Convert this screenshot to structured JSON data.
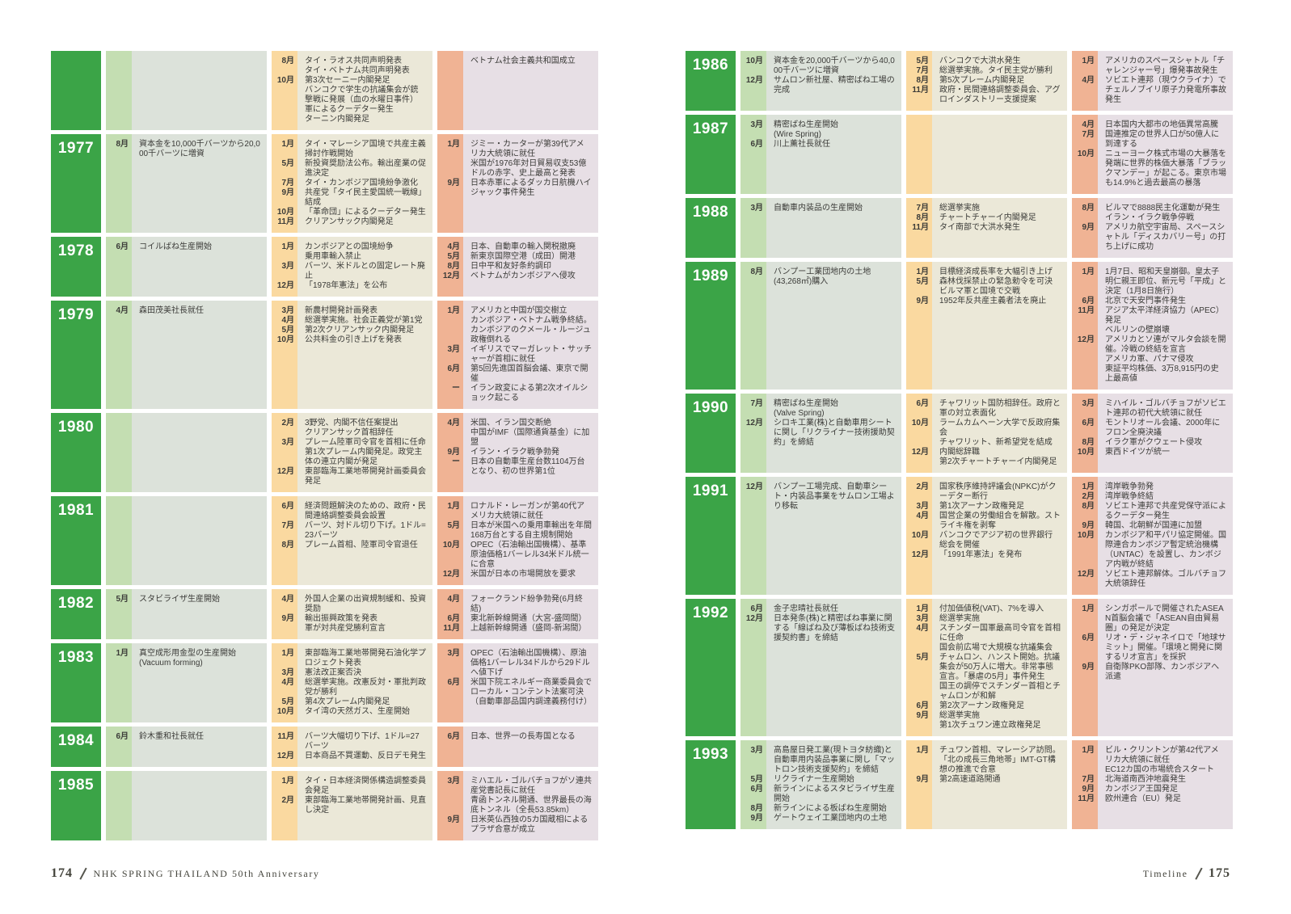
{
  "colors": {
    "year_box": "#3ba447",
    "year_text": "#ffffff",
    "company_band": "#c4deb2",
    "company_area": "#dce2da",
    "thai_band": "#fad9a0",
    "thai_area": "#ebe8d8",
    "world_band": "#f0b394",
    "world_area": "#e7dfe5",
    "text": "#3b3b38"
  },
  "pages": [
    {
      "side": "left",
      "footer": {
        "page_number": "174",
        "label": "NHK SPRING THAILAND 50th Anniversary"
      },
      "rows": [
        {
          "year": "",
          "company": [],
          "thailand": [
            {
              "m": "8月",
              "t": "タイ・ラオス共同声明発表"
            },
            {
              "m": "",
              "t": "タイ・ベトナム共同声明発表"
            },
            {
              "m": "10月",
              "t": "第3次セーニー内閣発足"
            },
            {
              "m": "",
              "t": "バンコクで学生の抗議集会が銃撃戦に発展（血の水曜日事件）"
            },
            {
              "m": "",
              "t": "軍によるクーデター発生"
            },
            {
              "m": "",
              "t": "ターニン内閣発足"
            }
          ],
          "world": [
            {
              "m": "",
              "t": "ベトナム社会主義共和国成立"
            }
          ]
        },
        {
          "year": "1977",
          "company": [
            {
              "m": "8月",
              "t": "資本金を10,000千バーツから20,000千バーツに増資"
            }
          ],
          "thailand": [
            {
              "m": "1月",
              "t": "タイ・マレーシア国境で共産主義掃討作戦開始"
            },
            {
              "m": "5月",
              "t": "新投資奨励法公布。輸出産業の促進決定"
            },
            {
              "m": "7月",
              "t": "タイ・カンボジア国境紛争激化"
            },
            {
              "m": "9月",
              "t": "共産党「タイ民主愛国統一戦線」結成"
            },
            {
              "m": "10月",
              "t": "「革命団」によるクーデター発生"
            },
            {
              "m": "11月",
              "t": "クリアンサック内閣発足"
            }
          ],
          "world": [
            {
              "m": "1月",
              "t": "ジミー・カーターが第39代アメリカ大統領に就任"
            },
            {
              "m": "",
              "t": "米国が1976年対日貿易収支53億ドルの赤字、史上最高と発表"
            },
            {
              "m": "9月",
              "t": "日本赤軍によるダッカ日航機ハイジャック事件発生"
            }
          ]
        },
        {
          "year": "1978",
          "company": [
            {
              "m": "6月",
              "t": "コイルばね生産開始"
            }
          ],
          "thailand": [
            {
              "m": "1月",
              "t": "カンボジアとの国境紛争"
            },
            {
              "m": "",
              "t": "乗用車輸入禁止"
            },
            {
              "m": "3月",
              "t": "バーツ、米ドルとの固定レート廃止"
            },
            {
              "m": "12月",
              "t": "「1978年憲法」を公布"
            }
          ],
          "world": [
            {
              "m": "4月",
              "t": "日本、自動車の輸入関税撤廃"
            },
            {
              "m": "5月",
              "t": "新東京国際空港（成田）開港"
            },
            {
              "m": "8月",
              "t": "日中平和友好条約調印"
            },
            {
              "m": "12月",
              "t": "ベトナムがカンボジアへ侵攻"
            }
          ]
        },
        {
          "year": "1979",
          "company": [
            {
              "m": "4月",
              "t": "森田茂美社長就任"
            }
          ],
          "thailand": [
            {
              "m": "3月",
              "t": "新農村開発計画発表"
            },
            {
              "m": "4月",
              "t": "総選挙実施。社会正義党が第1党"
            },
            {
              "m": "5月",
              "t": "第2次クリアンサック内閣発足"
            },
            {
              "m": "10月",
              "t": "公共料金の引き上げを発表"
            }
          ],
          "world": [
            {
              "m": "1月",
              "t": "アメリカと中国が国交樹立"
            },
            {
              "m": "",
              "t": "カンボジア・ベトナム戦争終結。カンボジアのクメール・ルージュ政権倒れる"
            },
            {
              "m": "3月",
              "t": "イギリスでマーガレット・サッチャーが首相に就任"
            },
            {
              "m": "6月",
              "t": "第5回先進国首脳会議、東京で開催"
            },
            {
              "m": "ー",
              "t": "イラン政変による第2次オイルショック起こる"
            }
          ]
        },
        {
          "year": "1980",
          "company": [],
          "thailand": [
            {
              "m": "2月",
              "t": "3野党、内閣不信任案提出"
            },
            {
              "m": "",
              "t": "クリアンサック首相辞任"
            },
            {
              "m": "3月",
              "t": "プレーム陸軍司令官を首相に任命"
            },
            {
              "m": "",
              "t": "第1次プレーム内閣発足。政党主体の連立内閣が発足"
            },
            {
              "m": "12月",
              "t": "東部臨海工業地帯開発計画委員会発足"
            }
          ],
          "world": [
            {
              "m": "4月",
              "t": "米国、イラン国交断絶"
            },
            {
              "m": "",
              "t": "中国がIMF（国際通貨基金）に加盟"
            },
            {
              "m": "9月",
              "t": "イラン・イラク戦争勃発"
            },
            {
              "m": "ー",
              "t": "日本の自動車生産台数1104万台となり、初の世界第1位"
            }
          ]
        },
        {
          "year": "1981",
          "company": [],
          "thailand": [
            {
              "m": "6月",
              "t": "経済問題解決のための、政府・民間連絡調整委員会設置"
            },
            {
              "m": "7月",
              "t": "バーツ、対ドル切り下げ。1ドル=23バーツ"
            },
            {
              "m": "8月",
              "t": "プレーム首相、陸軍司令官退任"
            }
          ],
          "world": [
            {
              "m": "1月",
              "t": "ロナルド・レーガンが第40代アメリカ大統領に就任"
            },
            {
              "m": "5月",
              "t": "日本が米国への乗用車輸出を年間168万台とする自主規制開始"
            },
            {
              "m": "10月",
              "t": "OPEC（石油輸出国機構）、基準原油価格1バーレル34米ドル統一に合意"
            },
            {
              "m": "12月",
              "t": "米国が日本の市場開放を要求"
            }
          ]
        },
        {
          "year": "1982",
          "company": [
            {
              "m": "5月",
              "t": "スタビライザ生産開始"
            }
          ],
          "thailand": [
            {
              "m": "4月",
              "t": "外国人企業の出資規制緩和、投資奨励"
            },
            {
              "m": "9月",
              "t": "輸出振興政策を発表"
            },
            {
              "m": "",
              "t": "軍が対共産党勝利宣言"
            }
          ],
          "world": [
            {
              "m": "4月",
              "t": "フォークランド紛争勃発(6月終結)"
            },
            {
              "m": "6月",
              "t": "東北新幹線開通（大宮-盛岡間）"
            },
            {
              "m": "11月",
              "t": "上越新幹線開通（盛岡-新潟間）"
            }
          ]
        },
        {
          "year": "1983",
          "company": [
            {
              "m": "1月",
              "t": "真空成形用金型の生産開始"
            },
            {
              "m": "",
              "t": "(Vacuum forming)"
            }
          ],
          "thailand": [
            {
              "m": "1月",
              "t": "東部臨海工業地帯開発石油化学プロジェクト発表"
            },
            {
              "m": "3月",
              "t": "憲法改正案否決"
            },
            {
              "m": "4月",
              "t": "総選挙実施。改憲反対・軍批判政党が勝利"
            },
            {
              "m": "5月",
              "t": "第4次プレーム内閣発足"
            },
            {
              "m": "10月",
              "t": "タイ湾の天然ガス、生産開始"
            }
          ],
          "world": [
            {
              "m": "3月",
              "t": "OPEC（石油輸出国機構）、原油価格1バーレル34ドルから29ドルへ値下げ"
            },
            {
              "m": "6月",
              "t": "米国下院エネルギー商業委員会でローカル・コンテント法案可決（自動車部品国内調達義務付け）"
            }
          ]
        },
        {
          "year": "1984",
          "company": [
            {
              "m": "6月",
              "t": "鈴木重和社長就任"
            }
          ],
          "thailand": [
            {
              "m": "11月",
              "t": "バーツ大幅切り下げ、1ドル=27バーツ"
            },
            {
              "m": "12月",
              "t": "日本商品不買運動、反日デモ発生"
            }
          ],
          "world": [
            {
              "m": "6月",
              "t": "日本、世界一の長寿国となる"
            }
          ]
        },
        {
          "year": "1985",
          "company": [],
          "thailand": [
            {
              "m": "1月",
              "t": "タイ・日本経済関係構造調整委員会発足"
            },
            {
              "m": "2月",
              "t": "東部臨海工業地帯開発計画、見直し決定"
            }
          ],
          "world": [
            {
              "m": "3月",
              "t": "ミハエル・ゴルバチョフがソ連共産党書記長に就任"
            },
            {
              "m": "",
              "t": "青函トンネル開通、世界最長の海底トンネル（全長53.85km）"
            },
            {
              "m": "9月",
              "t": "日米英仏西独の5カ国蔵相によるプラザ合意が成立"
            }
          ]
        }
      ]
    },
    {
      "side": "right",
      "footer": {
        "page_number": "175",
        "label": "Timeline"
      },
      "rows": [
        {
          "year": "1986",
          "company": [
            {
              "m": "10月",
              "t": "資本金を20,000千バーツから40,000千バーツに増資"
            },
            {
              "m": "12月",
              "t": "サムロン新社屋、精密ばね工場の完成"
            }
          ],
          "thailand": [
            {
              "m": "5月",
              "t": "バンコクで大洪水発生"
            },
            {
              "m": "7月",
              "t": "総選挙実施。タイ民主党が勝利"
            },
            {
              "m": "8月",
              "t": "第5次プレーム内閣発足"
            },
            {
              "m": "11月",
              "t": "政府・民間連絡調整委員会、アグロインダストリー支援提案"
            }
          ],
          "world": [
            {
              "m": "1月",
              "t": "アメリカのスペースシャトル「チャレンジャー号」爆発事故発生"
            },
            {
              "m": "4月",
              "t": "ソビエト連邦（現ウクライナ）でチェルノブイリ原子力発電所事故発生"
            }
          ]
        },
        {
          "year": "1987",
          "company": [
            {
              "m": "3月",
              "t": "精密ばね生産開始"
            },
            {
              "m": "",
              "t": "(Wire Spring)"
            },
            {
              "m": "6月",
              "t": "川上薫社長就任"
            }
          ],
          "thailand": [],
          "world": [
            {
              "m": "4月",
              "t": "日本国内大都市の地価異常高騰"
            },
            {
              "m": "7月",
              "t": "国連推定の世界人口が50億人に到達する"
            },
            {
              "m": "10月",
              "t": "ニューヨーク株式市場の大暴落を発端に世界的株価大暴落「ブラックマンデー」が起こる。東京市場も14.9%と過去最高の暴落"
            }
          ]
        },
        {
          "year": "1988",
          "company": [
            {
              "m": "3月",
              "t": "自動車内装品の生産開始"
            }
          ],
          "thailand": [
            {
              "m": "7月",
              "t": "総選挙実施"
            },
            {
              "m": "8月",
              "t": "チャートチャーイ内閣発足"
            },
            {
              "m": "11月",
              "t": "タイ南部で大洪水発生"
            }
          ],
          "world": [
            {
              "m": "8月",
              "t": "ビルマで8888民主化運動が発生"
            },
            {
              "m": "",
              "t": "イラン・イラク戦争停戦"
            },
            {
              "m": "9月",
              "t": "アメリカ航空宇宙局、スペースシャトル「ディスカバリー号」の打ち上げに成功"
            }
          ]
        },
        {
          "year": "1989",
          "company": [
            {
              "m": "8月",
              "t": "バンプー工業団地内の土地"
            },
            {
              "m": "",
              "t": "(43,268㎡)購入"
            }
          ],
          "thailand": [
            {
              "m": "1月",
              "t": "目標経済成長率を大幅引き上げ"
            },
            {
              "m": "5月",
              "t": "森林伐採禁止の緊急勅令を可決"
            },
            {
              "m": "",
              "t": "ビルマ軍と国境で交戦"
            },
            {
              "m": "9月",
              "t": "1952年反共産主義者法を廃止"
            }
          ],
          "world": [
            {
              "m": "1月",
              "t": "1月7日、昭和天皇崩御。皇太子明仁親王即位、新元号「平成」と決定（1月8日施行）"
            },
            {
              "m": "6月",
              "t": "北京で天安門事件発生"
            },
            {
              "m": "11月",
              "t": "アジア太平洋経済協力（APEC）発足"
            },
            {
              "m": "",
              "t": "ベルリンの壁崩壊"
            },
            {
              "m": "12月",
              "t": "アメリカとソ連がマルタ会談を開催。冷戦の終結を宣言"
            },
            {
              "m": "",
              "t": "アメリカ軍、パナマ侵攻"
            },
            {
              "m": "",
              "t": "東証平均株価、3万8,915円の史上最高値"
            }
          ]
        },
        {
          "year": "1990",
          "company": [
            {
              "m": "7月",
              "t": "精密ばね生産開始"
            },
            {
              "m": "",
              "t": "(Valve Spring)"
            },
            {
              "m": "12月",
              "t": "シロキ工業(株)と自動車用シートに関し「リクライナー技術援助契約」を締結"
            }
          ],
          "thailand": [
            {
              "m": "6月",
              "t": "チャワリット国防相辞任。政府と軍の対立表面化"
            },
            {
              "m": "10月",
              "t": "ラームカムヘーン大学で反政府集会"
            },
            {
              "m": "",
              "t": "チャワリット、新希望党を結成"
            },
            {
              "m": "12月",
              "t": "内閣総辞職"
            },
            {
              "m": "",
              "t": "第2次チャートチャーイ内閣発足"
            }
          ],
          "world": [
            {
              "m": "3月",
              "t": "ミハイル・ゴルバチョフがソビエト連邦の初代大統領に就任"
            },
            {
              "m": "6月",
              "t": "モントリオール会議、2000年にフロン全廃決議"
            },
            {
              "m": "8月",
              "t": "イラク軍がクウェート侵攻"
            },
            {
              "m": "10月",
              "t": "東西ドイツが統一"
            }
          ]
        },
        {
          "year": "1991",
          "company": [
            {
              "m": "12月",
              "t": "バンプー工場完成、自動車シート・内装品事業をサムロン工場より移転"
            }
          ],
          "thailand": [
            {
              "m": "2月",
              "t": "国家秩序維持評議会(NPKC)がクーデター断行"
            },
            {
              "m": "3月",
              "t": "第1次アーナン政権発足"
            },
            {
              "m": "4月",
              "t": "国営企業の労働組合を解散。ストライキ権を剥奪"
            },
            {
              "m": "10月",
              "t": "バンコクでアジア初の世界銀行総会を開催"
            },
            {
              "m": "12月",
              "t": "「1991年憲法」を発布"
            }
          ],
          "world": [
            {
              "m": "1月",
              "t": "湾岸戦争勃発"
            },
            {
              "m": "2月",
              "t": "湾岸戦争終結"
            },
            {
              "m": "8月",
              "t": "ソビエト連邦で共産党保守派によるクーデター発生"
            },
            {
              "m": "9月",
              "t": "韓国、北朝鮮が国連に加盟"
            },
            {
              "m": "10月",
              "t": "カンボジア和平パリ協定開催。国際連合カンボジア暫定統治機構（UNTAC）を設置し、カンボジア内戦が終結"
            },
            {
              "m": "12月",
              "t": "ソビエト連邦解体。ゴルバチョフ大統領辞任"
            }
          ]
        },
        {
          "year": "1992",
          "company": [
            {
              "m": "6月",
              "t": "金子忠晴社長就任"
            },
            {
              "m": "12月",
              "t": "日本発条(株)と精密ばね事業に関する「線ばね及び薄板ばね技術支援契約書」を締結"
            }
          ],
          "thailand": [
            {
              "m": "1月",
              "t": "付加価値税(VAT)、7%を導入"
            },
            {
              "m": "3月",
              "t": "総選挙実施"
            },
            {
              "m": "4月",
              "t": "スチンダー国軍最高司令官を首相に任命"
            },
            {
              "m": "",
              "t": "国会前広場で大規模な抗議集会"
            },
            {
              "m": "5月",
              "t": "チャムロン、ハンスト開始。抗議集会が50万人に増大。非常事態宣言。「暴虐の5月」事件発生"
            },
            {
              "m": "",
              "t": "国王の調停でスチンダー首相とチャムロンが和解"
            },
            {
              "m": "6月",
              "t": "第2次アーナン政権発足"
            },
            {
              "m": "9月",
              "t": "総選挙実施"
            },
            {
              "m": "",
              "t": "第1次チュワン連立政権発足"
            }
          ],
          "world": [
            {
              "m": "1月",
              "t": "シンガポールで開催されたASEAN首脳会議で「ASEAN自由貿易圏」の発足が決定"
            },
            {
              "m": "6月",
              "t": "リオ・デ・ジャネイロで「地球サミット」開催。「環境と開発に関するリオ宣言」を採択"
            },
            {
              "m": "9月",
              "t": "自衛隊PKO部隊、カンボジアへ派遣"
            }
          ]
        },
        {
          "year": "1993",
          "company": [
            {
              "m": "3月",
              "t": "高島屋日発工業(現トヨタ紡織)と自動車用内装品事業に関し「マットロン技術支援契約」を締結"
            },
            {
              "m": "5月",
              "t": "リクライナー生産開始"
            },
            {
              "m": "6月",
              "t": "新ラインによるスタビライザ生産開始"
            },
            {
              "m": "8月",
              "t": "新ラインによる板ばね生産開始"
            },
            {
              "m": "9月",
              "t": "ゲートウェイ工業団地内の土地"
            }
          ],
          "thailand": [
            {
              "m": "1月",
              "t": "チュワン首相、マレーシア訪問。「北の成長三角地帯」IMT-GT構想の推進で合意"
            },
            {
              "m": "9月",
              "t": "第2高速道路開通"
            }
          ],
          "world": [
            {
              "m": "1月",
              "t": "ビル・クリントンが第42代アメリカ大統領に就任"
            },
            {
              "m": "",
              "t": "EC12カ国の市場統合スタート"
            },
            {
              "m": "7月",
              "t": "北海道南西沖地震発生"
            },
            {
              "m": "9月",
              "t": "カンボジア王国発足"
            },
            {
              "m": "11月",
              "t": "欧州連合（EU）発足"
            }
          ]
        }
      ]
    }
  ]
}
